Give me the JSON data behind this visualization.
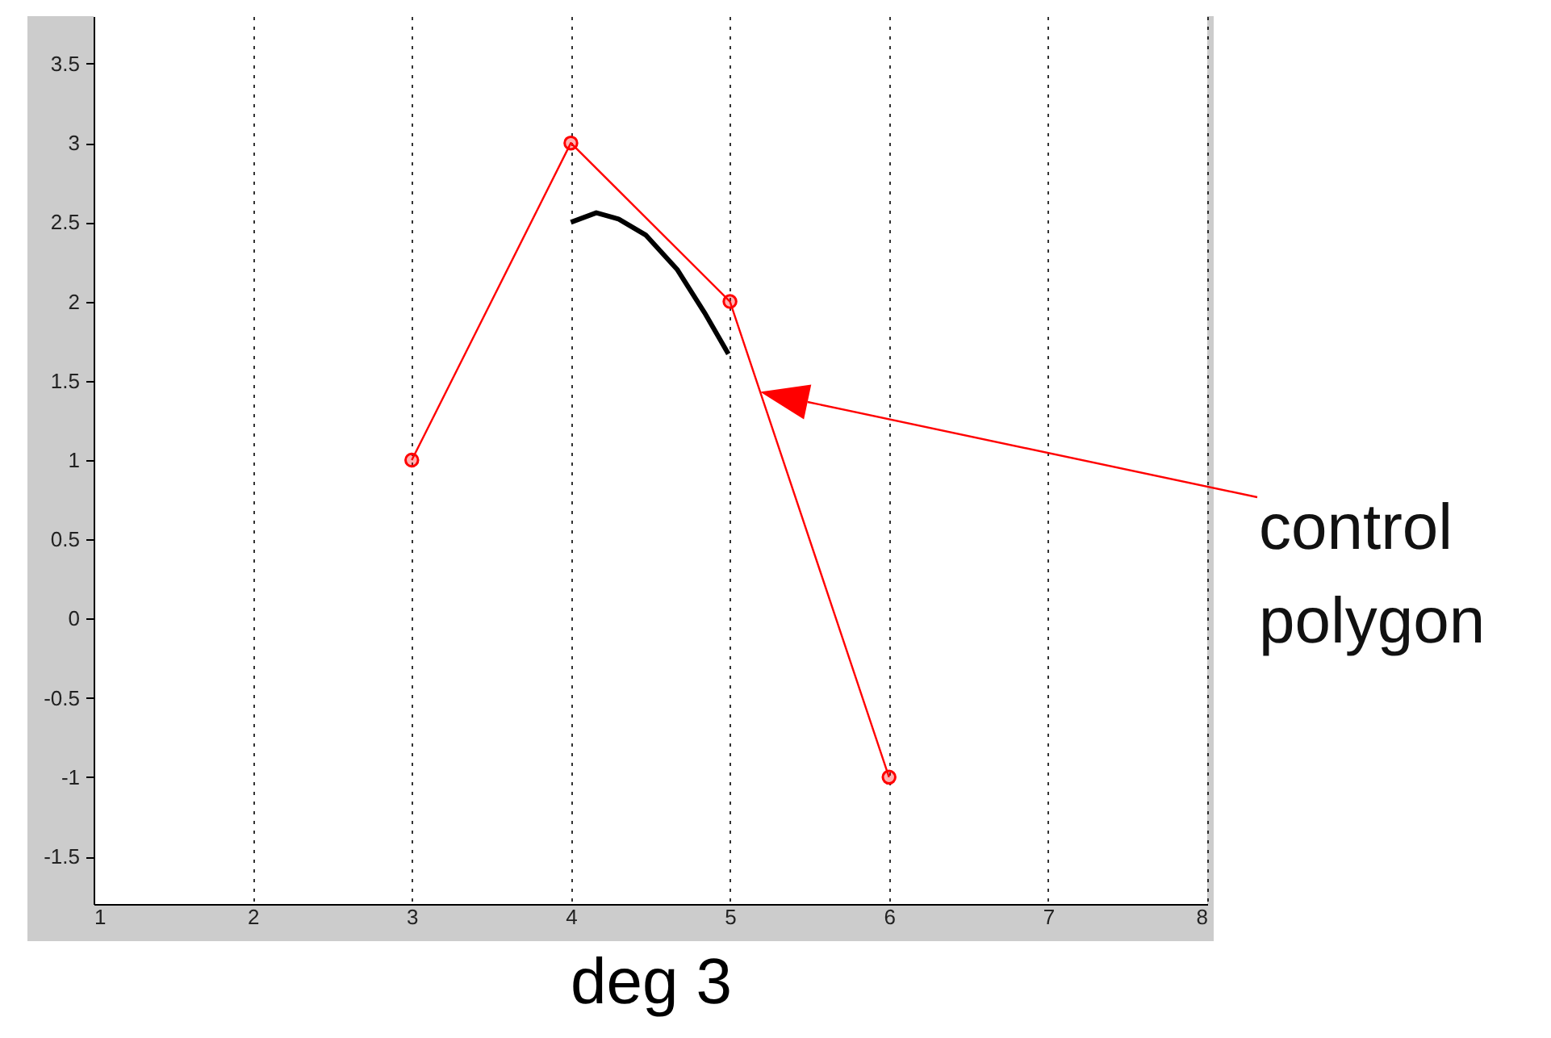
{
  "chart_data": {
    "type": "line",
    "xlabel": "deg 3",
    "xlim": [
      1,
      8
    ],
    "ylim": [
      -1.8,
      3.8
    ],
    "xticks": [
      1,
      2,
      3,
      4,
      5,
      6,
      7,
      8
    ],
    "yticks": [
      -1.5,
      -1,
      -0.5,
      0,
      0.5,
      1,
      1.5,
      2,
      2.5,
      3,
      3.5
    ],
    "grid": "x",
    "series": [
      {
        "color": "#ff0000",
        "marker": "circle",
        "line_style": "solid",
        "x": [
          3,
          4,
          5,
          6
        ],
        "values": [
          1,
          3,
          2,
          -1
        ]
      },
      {
        "color": "#000000",
        "marker": "none",
        "line_style": "solid",
        "x": [
          4.0,
          4.16,
          4.3,
          4.47,
          4.67,
          4.84,
          4.99
        ],
        "values": [
          2.5,
          2.56,
          2.52,
          2.42,
          2.2,
          1.93,
          1.67
        ]
      }
    ],
    "annotations": [
      "control polygon"
    ]
  }
}
